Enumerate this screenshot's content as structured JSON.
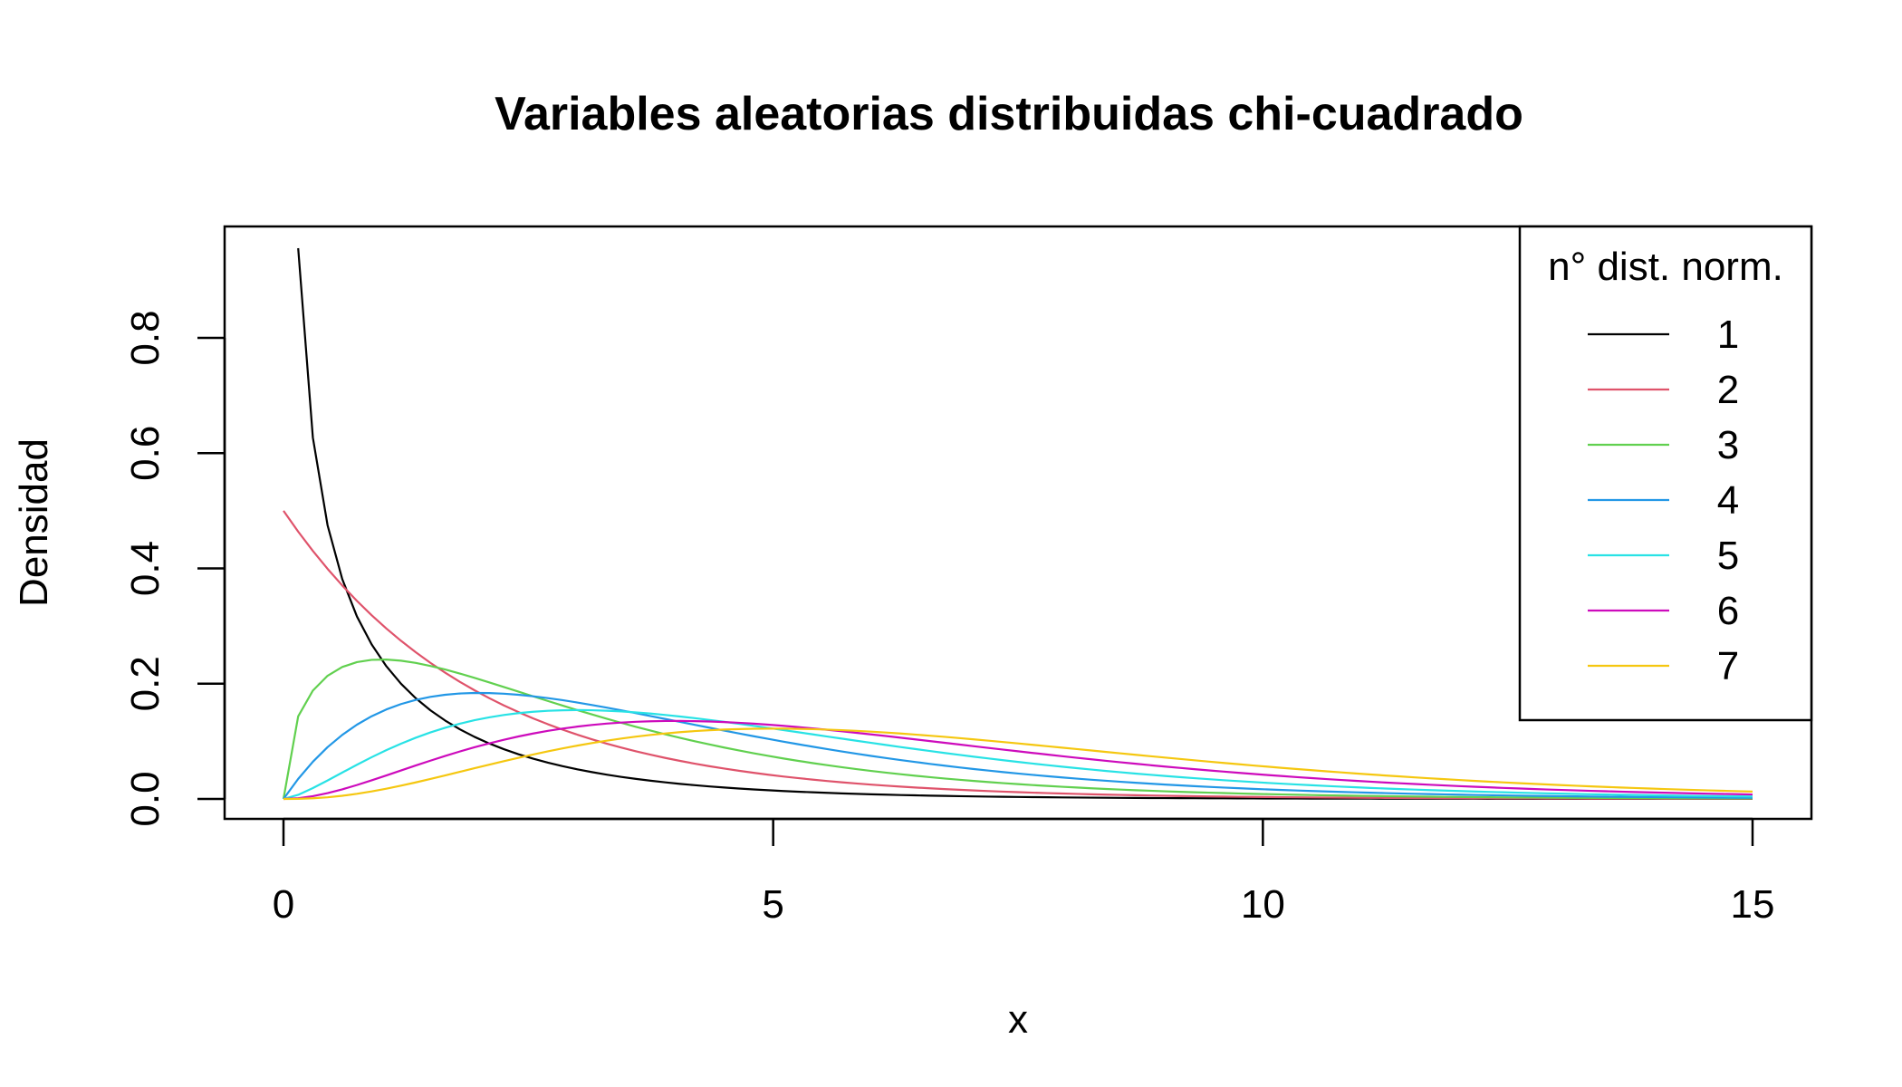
{
  "chart_data": {
    "type": "line",
    "title": "Variables aleatorias distribuidas chi-cuadrado",
    "xlabel": "x",
    "ylabel": "Densidad",
    "xlim": [
      0,
      15
    ],
    "ylim": [
      0,
      0.96
    ],
    "x_ticks": [
      0,
      5,
      10,
      15
    ],
    "x_tick_labels": [
      "0",
      "5",
      "10",
      "15"
    ],
    "y_ticks": [
      0,
      0.2,
      0.4,
      0.6,
      0.8
    ],
    "y_tick_labels": [
      "0.0",
      "0.2",
      "0.4",
      "0.6",
      "0.8"
    ],
    "grid": false,
    "legend": {
      "title": "n° dist. norm.",
      "position": "top-right"
    },
    "series": [
      {
        "name": "1",
        "df": 1,
        "color": "#000000"
      },
      {
        "name": "2",
        "df": 2,
        "color": "#DF536B"
      },
      {
        "name": "3",
        "df": 3,
        "color": "#61D04F"
      },
      {
        "name": "4",
        "df": 4,
        "color": "#2297E6"
      },
      {
        "name": "5",
        "df": 5,
        "color": "#28E2E5"
      },
      {
        "name": "6",
        "df": 6,
        "color": "#CD0BBC"
      },
      {
        "name": "7",
        "df": 7,
        "color": "#F5C710"
      }
    ],
    "x_step": 0.15
  }
}
